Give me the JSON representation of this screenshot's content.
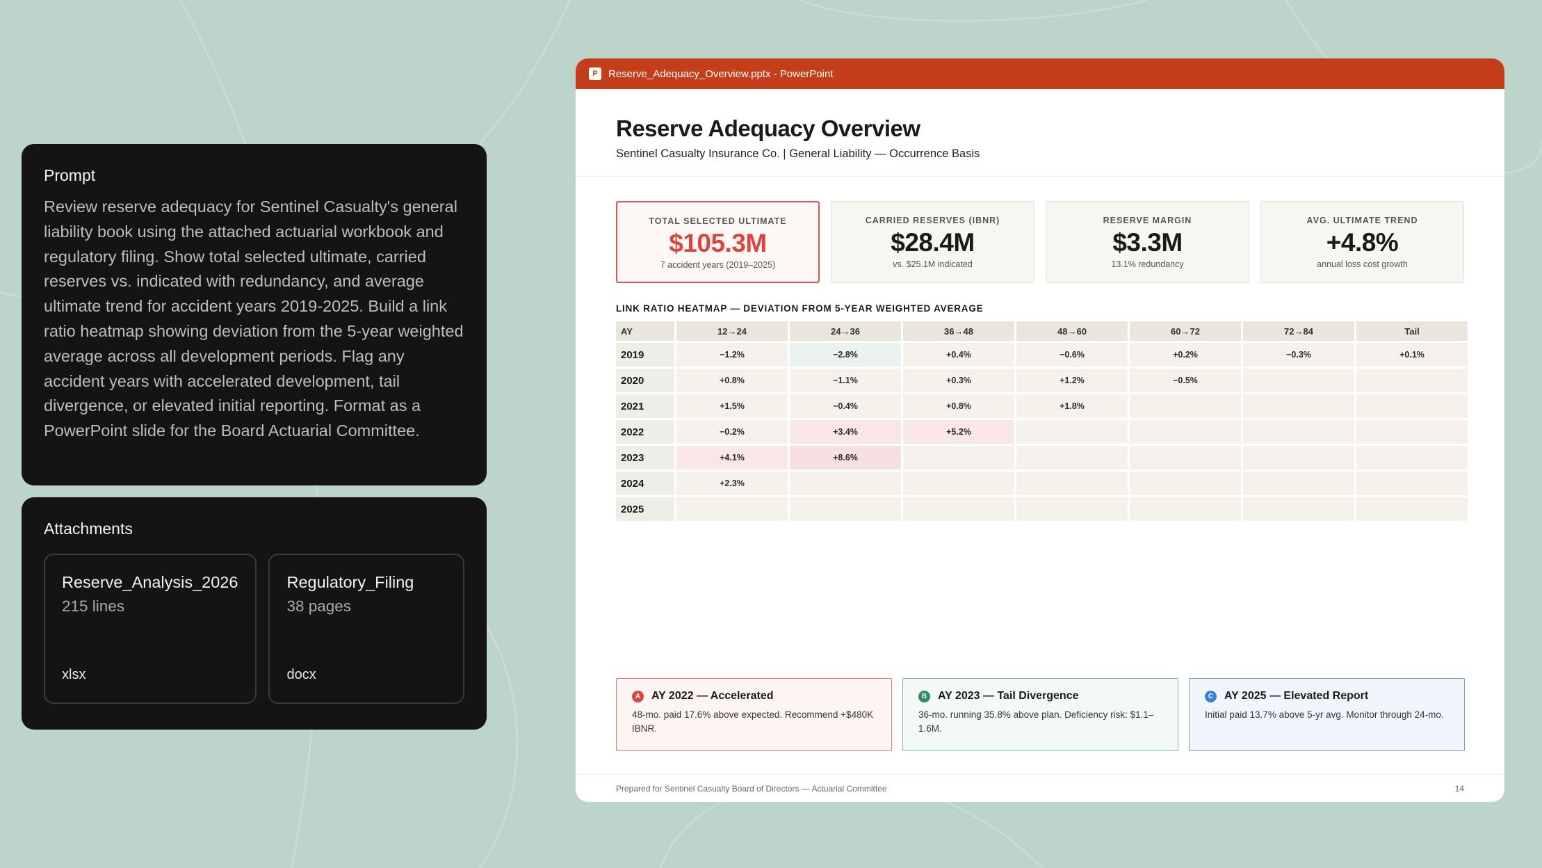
{
  "prompt": {
    "title": "Prompt",
    "body": "Review reserve adequacy for Sentinel Casualty's general liability book using the attached actuarial workbook and regulatory filing. Show total selected ultimate, carried reserves vs. indicated with redundancy, and average ultimate trend for accident years 2019-2025. Build a link ratio heatmap showing deviation from the 5-year weighted average across all development periods. Flag any accident years with accelerated development, tail divergence, or elevated initial reporting. Format as a PowerPoint slide for the Board Actuarial Committee."
  },
  "attachments": {
    "title": "Attachments",
    "items": [
      {
        "name": "Reserve_Analysis_2026",
        "meta": "215 lines",
        "ext": "xlsx"
      },
      {
        "name": "Regulatory_Filing",
        "meta": "38 pages",
        "ext": "docx"
      }
    ]
  },
  "window": {
    "icon_letter": "P",
    "title": "Reserve_Adequacy_Overview.pptx - PowerPoint"
  },
  "slide": {
    "title": "Reserve Adequacy Overview",
    "subtitle": "Sentinel Casualty Insurance Co.  |  General Liability — Occurrence Basis",
    "kpis": [
      {
        "label": "TOTAL SELECTED ULTIMATE",
        "value": "$105.3M",
        "note": "7 accident years (2019–2025)"
      },
      {
        "label": "CARRIED RESERVES (IBNR)",
        "value": "$28.4M",
        "note": "vs. $25.1M indicated"
      },
      {
        "label": "RESERVE MARGIN",
        "value": "$3.3M",
        "note": "13.1% redundancy"
      },
      {
        "label": "AVG. ULTIMATE TREND",
        "value": "+4.8%",
        "note": "annual loss cost growth"
      }
    ],
    "heatmap_title": "LINK RATIO HEATMAP — DEVIATION FROM 5-YEAR WEIGHTED AVERAGE",
    "flags": [
      {
        "badge": "A",
        "title": "AY 2022 — Accelerated",
        "body": "48-mo. paid 17.6% above expected. Recommend +$480K IBNR."
      },
      {
        "badge": "B",
        "title": "AY 2023 — Tail Divergence",
        "body": "36-mo. running 35.8% above plan. Deficiency risk: $1.1–1.6M."
      },
      {
        "badge": "C",
        "title": "AY 2025 — Elevated Report",
        "body": "Initial paid 13.7% above 5-yr avg. Monitor through 24-mo."
      }
    ],
    "footer_left": "Prepared for Sentinel Casualty Board of Directors — Actuarial Committee",
    "page_number": "14"
  },
  "chart_data": {
    "type": "heatmap",
    "title": "LINK RATIO HEATMAP — DEVIATION FROM 5-YEAR WEIGHTED AVERAGE",
    "row_header": "AY",
    "columns": [
      "12→24",
      "24→36",
      "36→48",
      "48→60",
      "60→72",
      "72→84",
      "Tail"
    ],
    "rows": [
      "2019",
      "2020",
      "2021",
      "2022",
      "2023",
      "2024",
      "2025"
    ],
    "values": [
      [
        "−1.2%",
        "−2.8%",
        "+0.4%",
        "−0.6%",
        "+0.2%",
        "−0.3%",
        "+0.1%"
      ],
      [
        "+0.8%",
        "−1.1%",
        "+0.3%",
        "+1.2%",
        "−0.5%",
        "",
        ""
      ],
      [
        "+1.5%",
        "−0.4%",
        "+0.8%",
        "+1.8%",
        "",
        "",
        ""
      ],
      [
        "−0.2%",
        "+3.4%",
        "+5.2%",
        "",
        "",
        "",
        ""
      ],
      [
        "+4.1%",
        "+8.6%",
        "",
        "",
        "",
        "",
        ""
      ],
      [
        "+2.3%",
        "",
        "",
        "",
        "",
        "",
        ""
      ],
      [
        "",
        "",
        "",
        "",
        "",
        "",
        ""
      ]
    ]
  }
}
